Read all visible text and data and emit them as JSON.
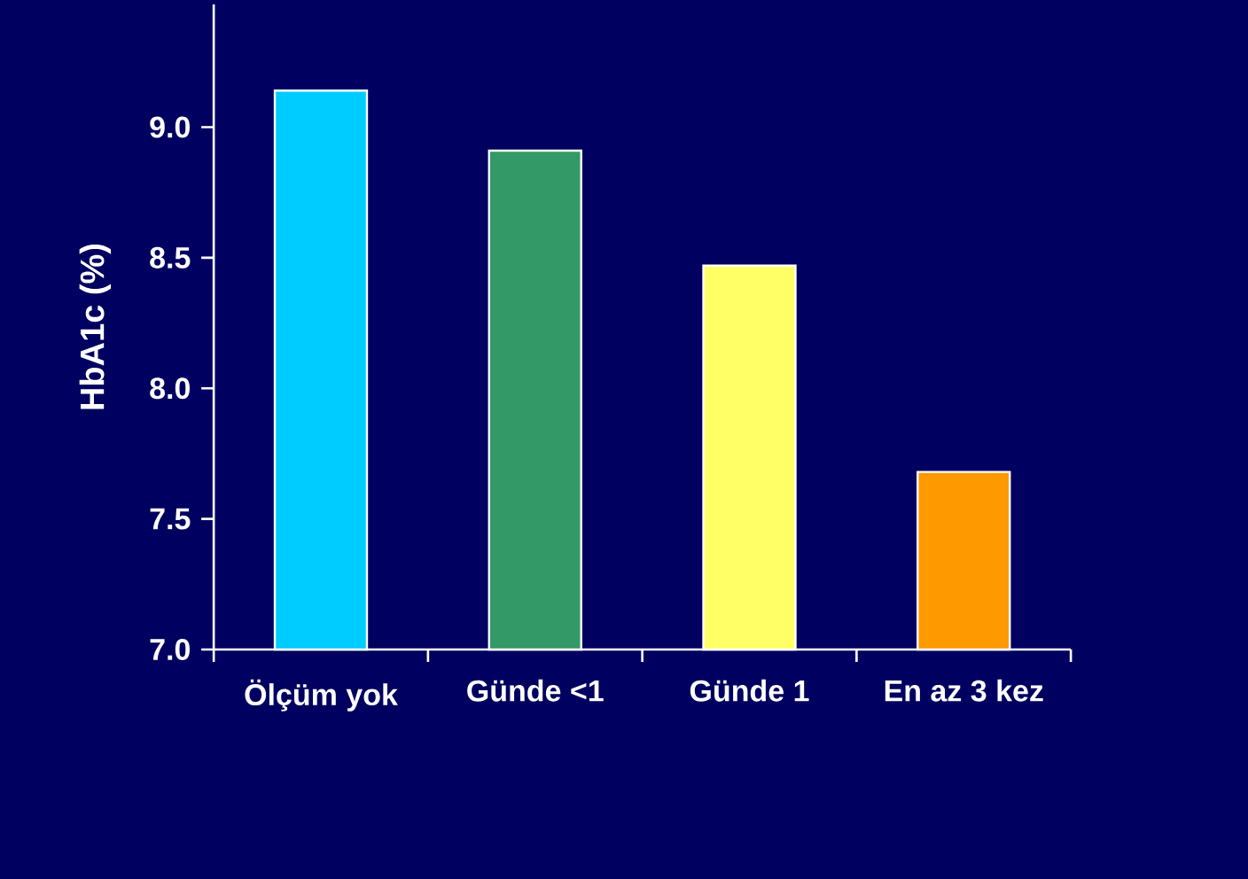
{
  "chart_data": {
    "type": "bar",
    "ylabel": "HbA1c (%)",
    "categories": [
      "Ölçüm yok",
      "Günde <1",
      "Günde 1",
      "En az 3 kez"
    ],
    "values": [
      9.14,
      8.91,
      8.47,
      7.68
    ],
    "colors": [
      "#00ccff",
      "#339966",
      "#ffff66",
      "#ff9900"
    ],
    "ylim": [
      7.0,
      9.47
    ],
    "yticks": [
      {
        "value": 7.0,
        "label": "7.0"
      },
      {
        "value": 7.5,
        "label": "7.5"
      },
      {
        "value": 8.0,
        "label": "8.0"
      },
      {
        "value": 8.5,
        "label": "8.5"
      },
      {
        "value": 9.0,
        "label": "9.0"
      }
    ]
  }
}
